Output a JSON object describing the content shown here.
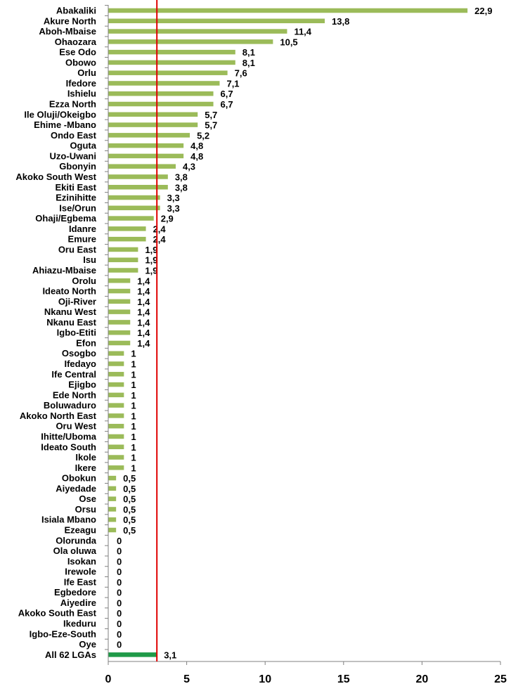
{
  "chart_data": {
    "type": "bar",
    "orientation": "horizontal",
    "title": "",
    "xlabel": "",
    "ylabel": "",
    "xlim": [
      0,
      25
    ],
    "x_ticks": [
      "0",
      "5",
      "10",
      "15",
      "20",
      "25"
    ],
    "grid": false,
    "legend": "none",
    "categories": [
      "Abakaliki",
      "Akure North",
      "Aboh-Mbaise",
      "Ohaozara",
      "Ese Odo",
      "Obowo",
      "Orlu",
      "Ifedore",
      "Ishielu",
      "Ezza North",
      "Ile Oluji/Okeigbo",
      "Ehime -Mbano",
      "Ondo East",
      "Oguta",
      "Uzo-Uwani",
      "Gbonyin",
      "Akoko South West",
      "Ekiti East",
      "Ezinihitte",
      "Ise/Orun",
      "Ohaji/Egbema",
      "Idanre",
      "Emure",
      "Oru East",
      "Isu",
      "Ahiazu-Mbaise",
      "Orolu",
      "Ideato North",
      "Oji-River",
      "Nkanu West",
      "Nkanu East",
      "Igbo-Etiti",
      "Efon",
      "Osogbo",
      "Ifedayo",
      "Ife Central",
      "Ejigbo",
      "Ede North",
      "Boluwaduro",
      "Akoko North East",
      "Oru West",
      "Ihitte/Uboma",
      "Ideato South",
      "Ikole",
      "Ikere",
      "Obokun",
      "Aiyedade",
      "Ose",
      "Orsu",
      "Isiala Mbano",
      "Ezeagu",
      "Olorunda",
      "Ola oluwa",
      "Isokan",
      "Irewole",
      "Ife East",
      "Egbedore",
      "Aiyedire",
      "Akoko South East",
      "Ikeduru",
      "Igbo-Eze-South",
      "Oye",
      "All 62 LGAs"
    ],
    "values": [
      22.9,
      13.8,
      11.4,
      10.5,
      8.1,
      8.1,
      7.6,
      7.1,
      6.7,
      6.7,
      5.7,
      5.7,
      5.2,
      4.8,
      4.8,
      4.3,
      3.8,
      3.8,
      3.3,
      3.3,
      2.9,
      2.4,
      2.4,
      1.9,
      1.9,
      1.9,
      1.4,
      1.4,
      1.4,
      1.4,
      1.4,
      1.4,
      1.4,
      1,
      1,
      1,
      1,
      1,
      1,
      1,
      1,
      1,
      1,
      1,
      1,
      0.5,
      0.5,
      0.5,
      0.5,
      0.5,
      0.5,
      0,
      0,
      0,
      0,
      0,
      0,
      0,
      0,
      0,
      0,
      0,
      3.1
    ],
    "value_labels": [
      "22,9",
      "13,8",
      "11,4",
      "10,5",
      "8,1",
      "8,1",
      "7,6",
      "7,1",
      "6,7",
      "6,7",
      "5,7",
      "5,7",
      "5,2",
      "4,8",
      "4,8",
      "4,3",
      "3,8",
      "3,8",
      "3,3",
      "3,3",
      "2,9",
      "2,4",
      "2,4",
      "1,9",
      "1,9",
      "1,9",
      "1,4",
      "1,4",
      "1,4",
      "1,4",
      "1,4",
      "1,4",
      "1,4",
      "1",
      "1",
      "1",
      "1",
      "1",
      "1",
      "1",
      "1",
      "1",
      "1",
      "1",
      "1",
      "0,5",
      "0,5",
      "0,5",
      "0,5",
      "0,5",
      "0,5",
      "0",
      "0",
      "0",
      "0",
      "0",
      "0",
      "0",
      "0",
      "0",
      "0",
      "0",
      "3,1"
    ],
    "reference_line": {
      "value": 3.1,
      "color": "#e00000"
    },
    "colors": {
      "bar": "#9bbb59",
      "total_bar": "#1f9a48",
      "axis": "#808080"
    }
  }
}
